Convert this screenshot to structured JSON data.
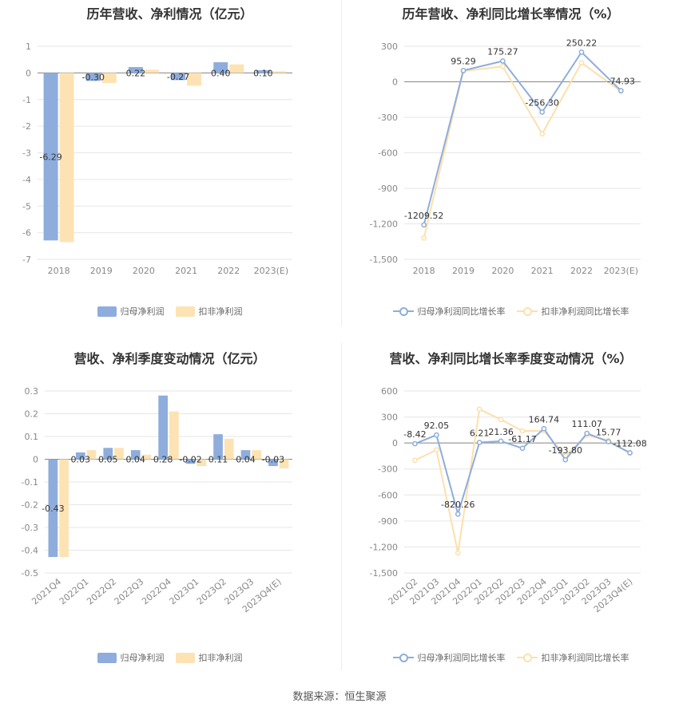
{
  "source": "数据来源：恒生聚源",
  "colors": {
    "blue": "#8eaddc",
    "orange": "#fde3b3",
    "blue_line": "#8eaddc",
    "orange_line": "#fce0ad",
    "grid": "#e6e6e6",
    "axis_text": "#888888"
  },
  "chart_data": [
    {
      "type": "bar",
      "title": "历年营收、净利情况（亿元）",
      "categories": [
        "2018",
        "2019",
        "2020",
        "2021",
        "2022",
        "2023(E)"
      ],
      "series": [
        {
          "name": "归母净利润",
          "values": [
            -6.29,
            -0.3,
            0.22,
            -0.27,
            0.4,
            0.1
          ]
        },
        {
          "name": "扣非净利润",
          "values": [
            -6.35,
            -0.38,
            0.12,
            -0.48,
            0.32,
            0.06
          ]
        }
      ],
      "data_labels": [
        "-6.29",
        "-0.30",
        "0.22",
        "-0.27",
        "0.40",
        "0.10"
      ],
      "ylim": [
        -7,
        1
      ],
      "yticks": [
        "1",
        "0",
        "-1",
        "-2",
        "-3",
        "-4",
        "-5",
        "-6",
        "-7"
      ],
      "grid": true,
      "legend": "bottom"
    },
    {
      "type": "line",
      "title": "历年营收、净利同比增长率情况（%）",
      "categories": [
        "2018",
        "2019",
        "2020",
        "2021",
        "2022",
        "2023(E)"
      ],
      "series": [
        {
          "name": "归母净利润同比增长率",
          "values": [
            -1209.52,
            95.29,
            175.27,
            -256.3,
            250.22,
            -74.93
          ]
        },
        {
          "name": "扣非净利润同比增长率",
          "values": [
            -1320,
            90,
            130,
            -440,
            160,
            -80
          ]
        }
      ],
      "data_labels": [
        "-1209.52",
        "95.29",
        "175.27",
        "-256.30",
        "250.22",
        "-74.93"
      ],
      "ylim": [
        -1500,
        300
      ],
      "yticks": [
        "300",
        "0",
        "-300",
        "-600",
        "-900",
        "-1,200",
        "-1,500"
      ],
      "grid": true,
      "legend": "bottom"
    },
    {
      "type": "bar",
      "title": "营收、净利季度变动情况（亿元）",
      "categories": [
        "2021Q4",
        "2022Q1",
        "2022Q2",
        "2022Q3",
        "2022Q4",
        "2023Q1",
        "2023Q2",
        "2023Q3",
        "2023Q4(E)"
      ],
      "series": [
        {
          "name": "归母净利润",
          "values": [
            -0.43,
            0.03,
            0.05,
            0.04,
            0.28,
            -0.02,
            0.11,
            0.04,
            -0.03
          ]
        },
        {
          "name": "扣非净利润",
          "values": [
            -0.43,
            0.04,
            0.05,
            0.02,
            0.21,
            -0.03,
            0.09,
            0.04,
            -0.04
          ]
        }
      ],
      "data_labels": [
        "-0.43",
        "0.03",
        "0.05",
        "0.04",
        "0.28",
        "-0.02",
        "0.11",
        "0.04",
        "-0.03"
      ],
      "ylim": [
        -0.5,
        0.3
      ],
      "yticks": [
        "0.3",
        "0.2",
        "0.1",
        "0",
        "-0.1",
        "-0.2",
        "-0.3",
        "-0.4",
        "-0.5"
      ],
      "grid": true,
      "legend": "bottom"
    },
    {
      "type": "line",
      "title": "营收、净利同比增长率季度变动情况（%）",
      "categories": [
        "2021Q2",
        "2021Q3",
        "2021Q4",
        "2022Q1",
        "2022Q2",
        "2022Q3",
        "2022Q4",
        "2023Q1",
        "2023Q2",
        "2023Q3",
        "2023Q4(E)"
      ],
      "series": [
        {
          "name": "归母净利润同比增长率",
          "values": [
            -8.42,
            92.05,
            -820.26,
            6.21,
            21.36,
            -61.17,
            164.74,
            -193.8,
            111.07,
            15.77,
            -112.08
          ]
        },
        {
          "name": "扣非净利润同比增长率",
          "values": [
            -200,
            -80,
            -1270,
            390,
            270,
            140,
            140,
            -150,
            90,
            30,
            -120
          ]
        }
      ],
      "data_labels": [
        "-8.42",
        "92.05",
        "-820.26",
        "6.21",
        "21.36",
        "-61.17",
        "164.74",
        "-193.80",
        "111.07",
        "15.77",
        "-112.08"
      ],
      "ylim": [
        -1500,
        600
      ],
      "yticks": [
        "600",
        "300",
        "0",
        "-300",
        "-600",
        "-900",
        "-1,200",
        "-1,500"
      ],
      "grid": true,
      "legend": "bottom"
    }
  ]
}
